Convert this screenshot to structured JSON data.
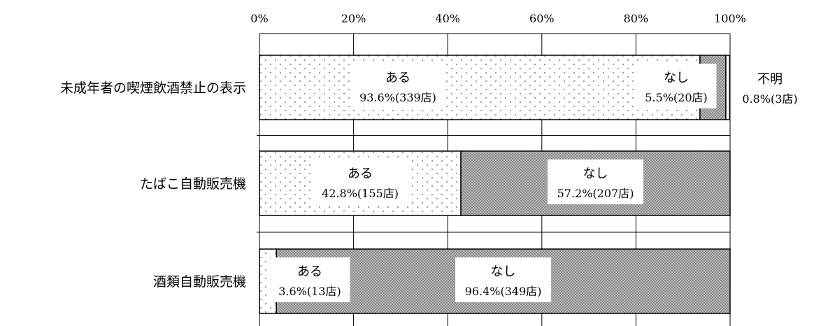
{
  "chart_data": {
    "type": "bar",
    "orientation": "horizontal",
    "stacked": true,
    "xlim": [
      0,
      100
    ],
    "x_ticks": [
      "0%",
      "20%",
      "40%",
      "60%",
      "80%",
      "100%"
    ],
    "grid": true,
    "legend": "none",
    "categories": [
      "未成年者の喫煙飲酒禁止の表示",
      "たばこ自動販売機",
      "酒類自動販売機"
    ],
    "series": [
      {
        "name": "ある",
        "values": [
          93.6,
          42.8,
          3.6
        ],
        "value_labels": [
          "93.6%(339店)",
          "42.8%(155店)",
          "3.6%(13店)"
        ],
        "pattern": "dots",
        "color": "#ffffff"
      },
      {
        "name": "なし",
        "values": [
          5.5,
          57.2,
          96.4
        ],
        "value_labels": [
          "5.5%(20店)",
          "57.2%(207店)",
          "96.4%(349店)"
        ],
        "pattern": "dense-checker",
        "color": "#999999"
      },
      {
        "name": "不明",
        "values": [
          0.8,
          0,
          0
        ],
        "value_labels": [
          "0.8%(3店)",
          "",
          ""
        ],
        "pattern": "none",
        "color": "#ffffff"
      }
    ]
  }
}
